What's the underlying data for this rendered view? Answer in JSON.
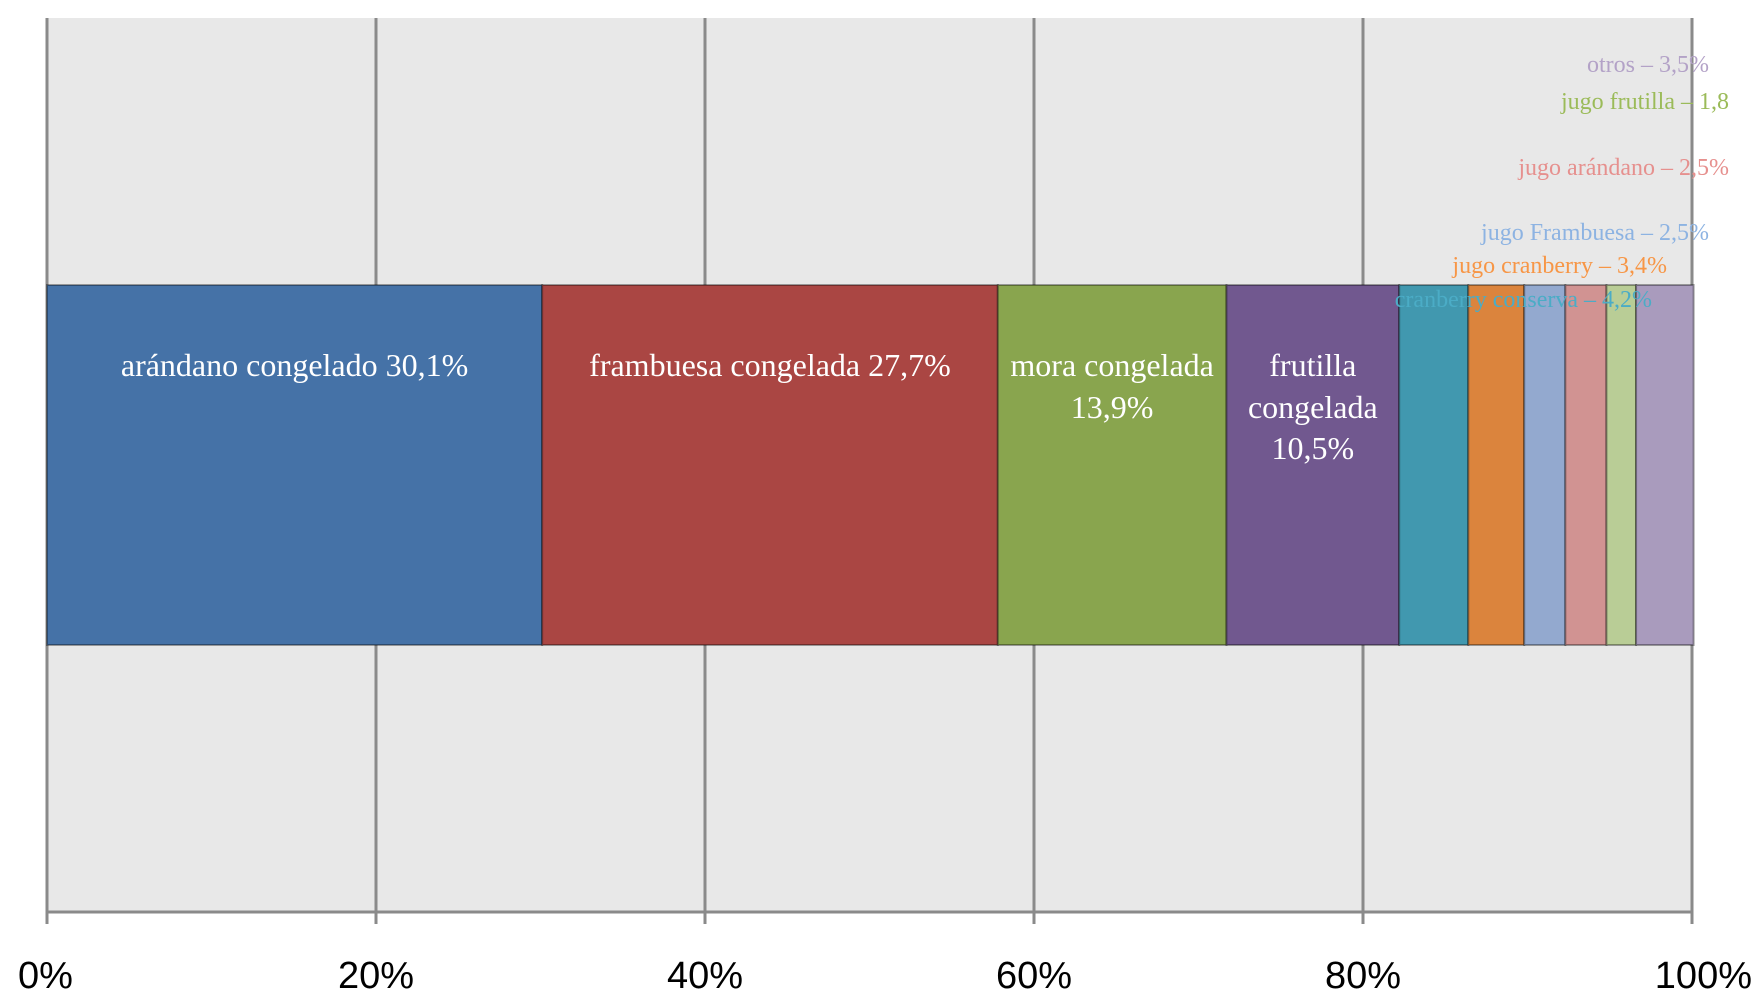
{
  "chart_data": {
    "type": "stacked_bar_100",
    "series": [
      {
        "color": "#4572a7",
        "values": [
          30.1
        ],
        "value_labels": [
          "arándano congelado 30,1%"
        ]
      },
      {
        "color": "#aa4643",
        "values": [
          27.7
        ],
        "value_labels": [
          "frambuesa congelada 27,7%"
        ]
      },
      {
        "color": "#89a54e",
        "values": [
          13.9
        ],
        "value_labels": [
          "mora congelada 13,9%"
        ]
      },
      {
        "color": "#71588f",
        "values": [
          10.5
        ],
        "value_labels": [
          "frutilla congelada 10,5%"
        ]
      },
      {
        "color": "#4198af",
        "label_color": "#4bacc6",
        "values": [
          4.2
        ],
        "value_labels": [
          "cranberry conserva – 4,2%"
        ]
      },
      {
        "color": "#db843d",
        "label_color": "#f79646",
        "values": [
          3.4
        ],
        "value_labels": [
          "jugo cranberry – 3,4%"
        ]
      },
      {
        "color": "#93a9cf",
        "label_color": "#8db3e2",
        "values": [
          2.5
        ],
        "value_labels": [
          "jugo Frambuesa – 2,5%"
        ]
      },
      {
        "color": "#d19392",
        "label_color": "#e6908e",
        "values": [
          2.5
        ],
        "value_labels": [
          "jugo arándano – 2,5%"
        ]
      },
      {
        "color": "#b9cd96",
        "label_color": "#9bbb59",
        "values": [
          1.8
        ],
        "value_labels": [
          "jugo frutilla – 1,8"
        ]
      },
      {
        "color": "#a99bbd",
        "label_color": "#b3a2c7",
        "values": [
          3.5
        ],
        "value_labels": [
          "otros – 3,5%"
        ]
      }
    ],
    "xlim": [
      0,
      100
    ],
    "xticks": [
      {
        "value": 0,
        "label": "0%"
      },
      {
        "value": 20,
        "label": "20%"
      },
      {
        "value": 40,
        "label": "40%"
      },
      {
        "value": 60,
        "label": "60%"
      },
      {
        "value": 80,
        "label": "80%"
      },
      {
        "value": 100,
        "label": "100%"
      }
    ],
    "grid": true
  }
}
